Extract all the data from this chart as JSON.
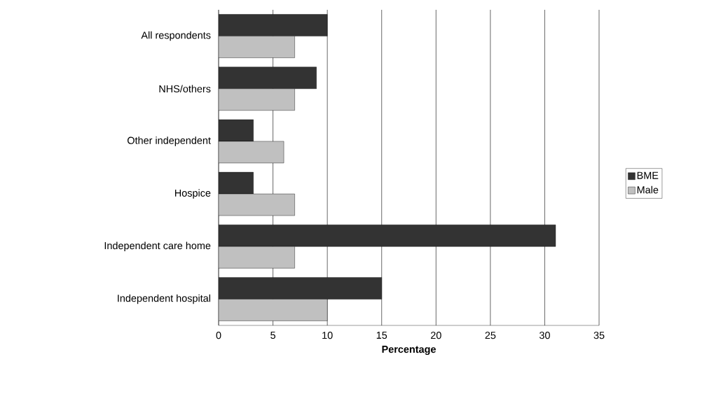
{
  "chart_data": {
    "type": "bar",
    "orientation": "horizontal",
    "xlabel": "Percentage",
    "categories": [
      "All respondents",
      "NHS/others",
      "Other independent",
      "Hospice",
      "Independent care home",
      "Independent hospital"
    ],
    "series": [
      {
        "name": "BME",
        "color": "#333333",
        "values": [
          10,
          9,
          3.2,
          3.2,
          31,
          15
        ]
      },
      {
        "name": "Male",
        "color": "#c0c0c0",
        "values": [
          7,
          7,
          6,
          7,
          7,
          10
        ]
      }
    ],
    "xlim": [
      0,
      35
    ],
    "xticks": [
      0,
      5,
      10,
      15,
      20,
      25,
      30,
      35
    ],
    "grid": "x",
    "legend": "right"
  }
}
